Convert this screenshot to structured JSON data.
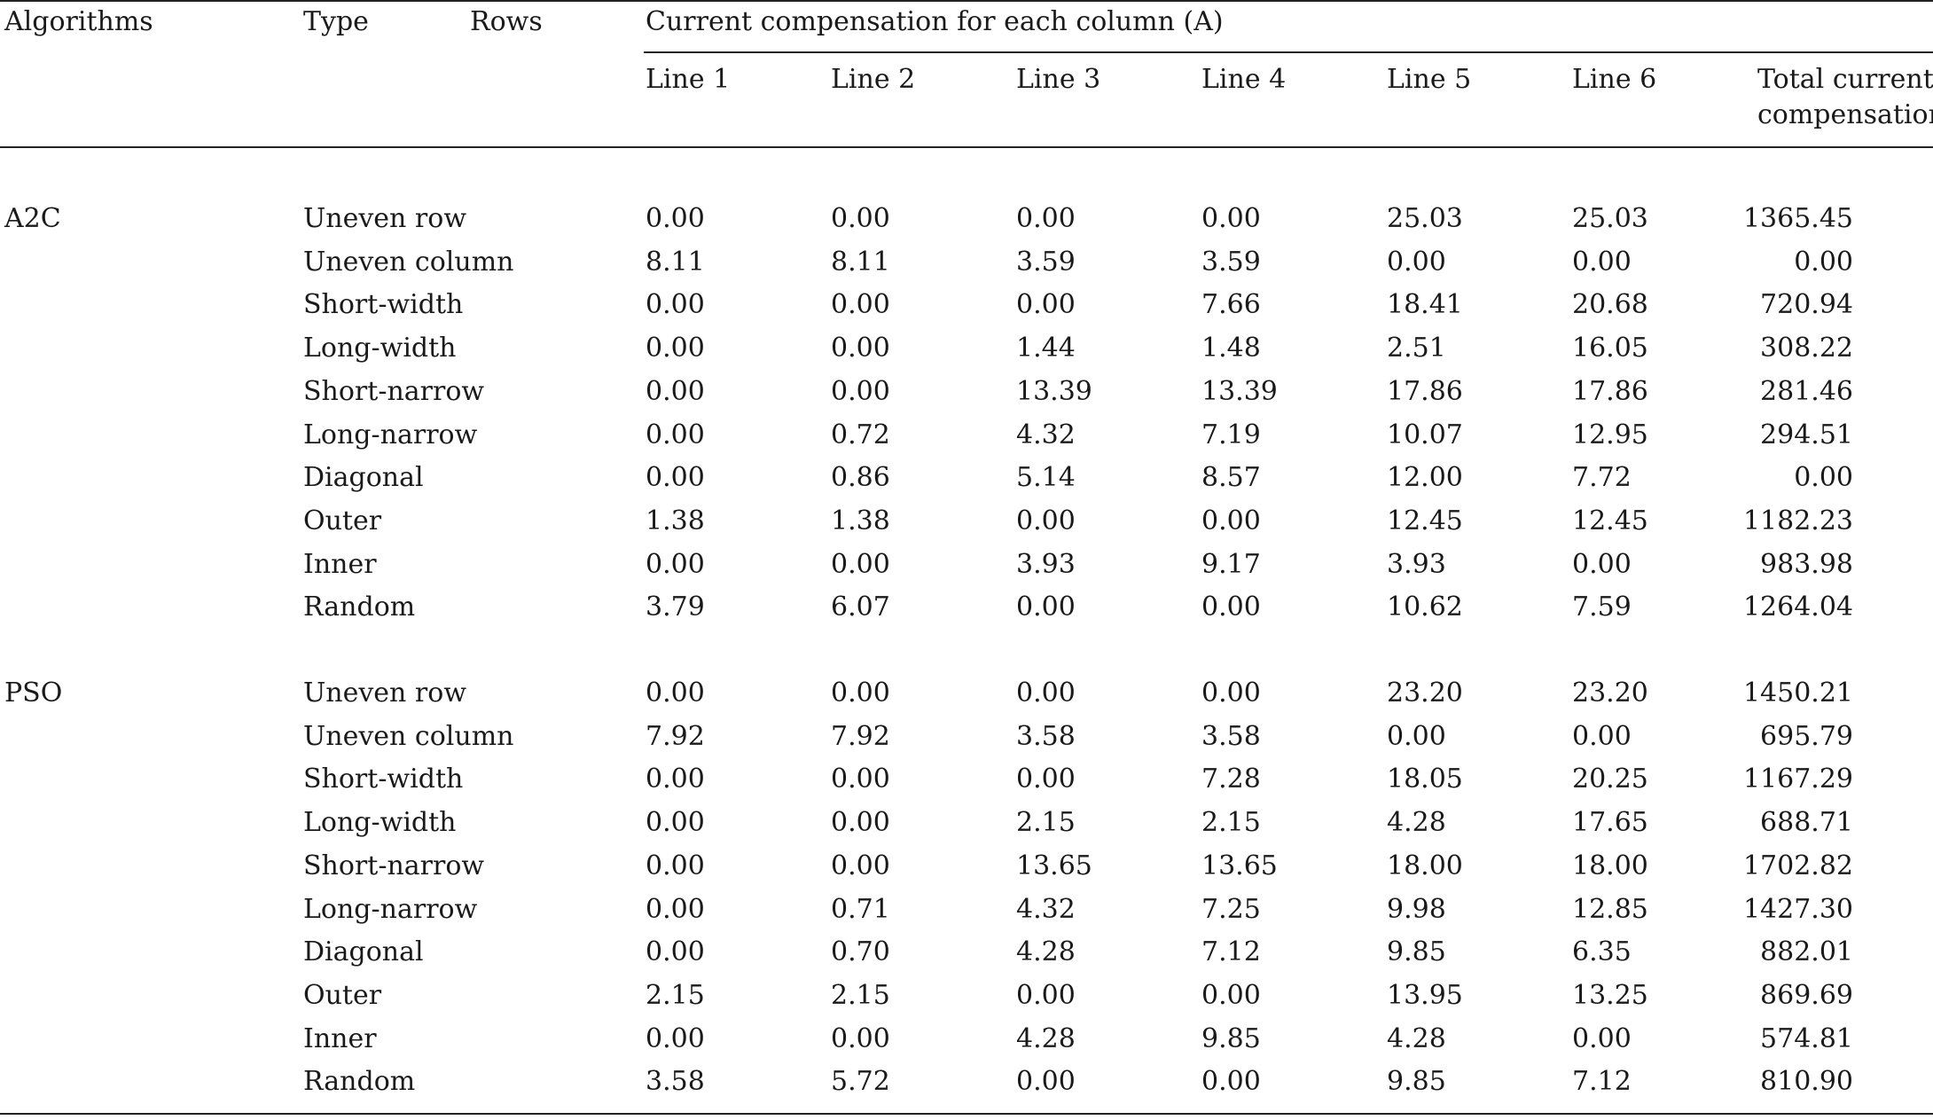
{
  "table": {
    "headers": {
      "algorithms": "Algorithms",
      "type": "Type",
      "rows": "Rows",
      "group": "Current compensation for each column (A)",
      "lines": [
        "Line 1",
        "Line 2",
        "Line 3",
        "Line 4",
        "Line 5",
        "Line 6"
      ],
      "total_line1": "Total current",
      "total_line2": "compensation"
    },
    "groups": [
      {
        "algorithm": "A2C",
        "rows": [
          {
            "type": "Uneven row",
            "values": [
              "0.00",
              "0.00",
              "0.00",
              "0.00",
              "25.03",
              "25.03"
            ],
            "total": "1365.45"
          },
          {
            "type": "Uneven column",
            "values": [
              "8.11",
              "8.11",
              "3.59",
              "3.59",
              "0.00",
              "0.00"
            ],
            "total": "0.00"
          },
          {
            "type": "Short-width",
            "values": [
              "0.00",
              "0.00",
              "0.00",
              "7.66",
              "18.41",
              "20.68"
            ],
            "total": "720.94"
          },
          {
            "type": "Long-width",
            "values": [
              "0.00",
              "0.00",
              "1.44",
              "1.48",
              "2.51",
              "16.05"
            ],
            "total": "308.22"
          },
          {
            "type": "Short-narrow",
            "values": [
              "0.00",
              "0.00",
              "13.39",
              "13.39",
              "17.86",
              "17.86"
            ],
            "total": "281.46"
          },
          {
            "type": "Long-narrow",
            "values": [
              "0.00",
              "0.72",
              "4.32",
              "7.19",
              "10.07",
              "12.95"
            ],
            "total": "294.51"
          },
          {
            "type": "Diagonal",
            "values": [
              "0.00",
              "0.86",
              "5.14",
              "8.57",
              "12.00",
              "7.72"
            ],
            "total": "0.00"
          },
          {
            "type": "Outer",
            "values": [
              "1.38",
              "1.38",
              "0.00",
              "0.00",
              "12.45",
              "12.45"
            ],
            "total": "1182.23"
          },
          {
            "type": "Inner",
            "values": [
              "0.00",
              "0.00",
              "3.93",
              "9.17",
              "3.93",
              "0.00"
            ],
            "total": "983.98"
          },
          {
            "type": "Random",
            "values": [
              "3.79",
              "6.07",
              "0.00",
              "0.00",
              "10.62",
              "7.59"
            ],
            "total": "1264.04"
          }
        ]
      },
      {
        "algorithm": "PSO",
        "rows": [
          {
            "type": "Uneven row",
            "values": [
              "0.00",
              "0.00",
              "0.00",
              "0.00",
              "23.20",
              "23.20"
            ],
            "total": "1450.21"
          },
          {
            "type": "Uneven column",
            "values": [
              "7.92",
              "7.92",
              "3.58",
              "3.58",
              "0.00",
              "0.00"
            ],
            "total": "695.79"
          },
          {
            "type": "Short-width",
            "values": [
              "0.00",
              "0.00",
              "0.00",
              "7.28",
              "18.05",
              "20.25"
            ],
            "total": "1167.29"
          },
          {
            "type": "Long-width",
            "values": [
              "0.00",
              "0.00",
              "2.15",
              "2.15",
              "4.28",
              "17.65"
            ],
            "total": "688.71"
          },
          {
            "type": "Short-narrow",
            "values": [
              "0.00",
              "0.00",
              "13.65",
              "13.65",
              "18.00",
              "18.00"
            ],
            "total": "1702.82"
          },
          {
            "type": "Long-narrow",
            "values": [
              "0.00",
              "0.71",
              "4.32",
              "7.25",
              "9.98",
              "12.85"
            ],
            "total": "1427.30"
          },
          {
            "type": "Diagonal",
            "values": [
              "0.00",
              "0.70",
              "4.28",
              "7.12",
              "9.85",
              "6.35"
            ],
            "total": "882.01"
          },
          {
            "type": "Outer",
            "values": [
              "2.15",
              "2.15",
              "0.00",
              "0.00",
              "13.95",
              "13.25"
            ],
            "total": "869.69"
          },
          {
            "type": "Inner",
            "values": [
              "0.00",
              "0.00",
              "4.28",
              "9.85",
              "4.28",
              "0.00"
            ],
            "total": "574.81"
          },
          {
            "type": "Random",
            "values": [
              "3.58",
              "5.72",
              "0.00",
              "0.00",
              "9.85",
              "7.12"
            ],
            "total": "810.90"
          }
        ]
      }
    ]
  }
}
